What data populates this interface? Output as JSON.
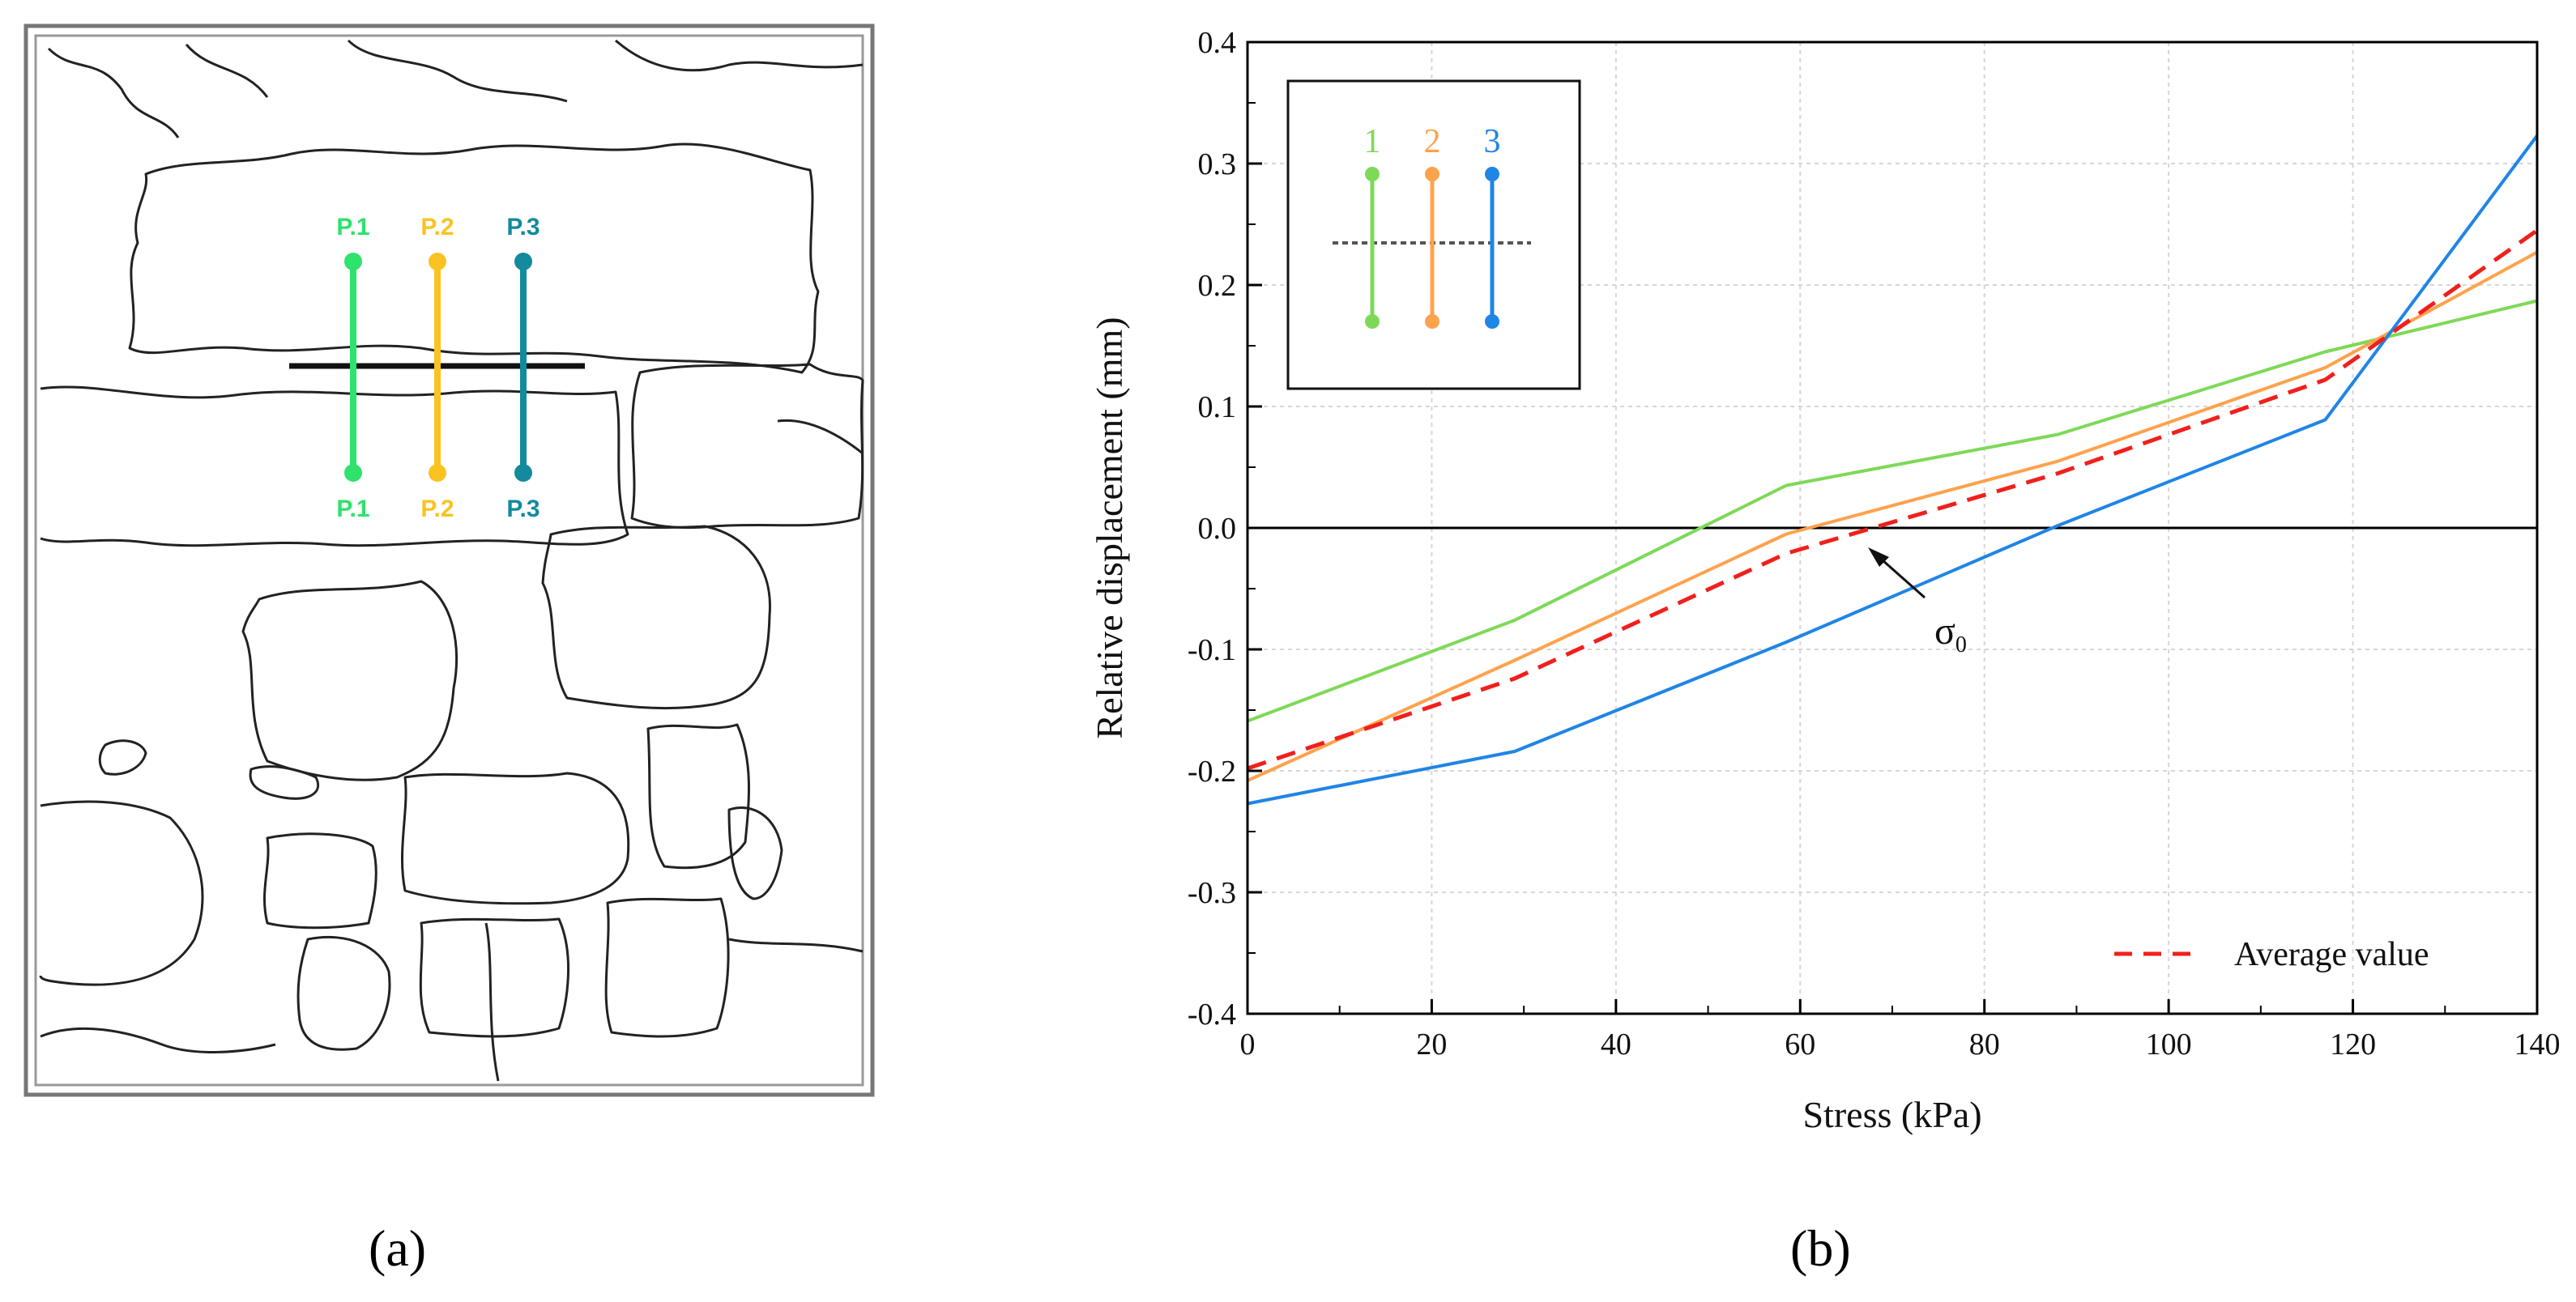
{
  "panel_a": {
    "label": "(a)",
    "point_labels_top": [
      "P.1",
      "P.2",
      "P.3"
    ],
    "point_labels_bottom": [
      "P.1",
      "P.2",
      "P.3"
    ],
    "point_colors": [
      "#2ee26b",
      "#fbc321",
      "#138a9d"
    ]
  },
  "panel_b": {
    "label": "(b)"
  },
  "chart_data": {
    "type": "line",
    "title": "",
    "xlabel": "Stress (kPa)",
    "ylabel": "Relative displacement (mm)",
    "xlim": [
      0,
      140
    ],
    "ylim": [
      -0.4,
      0.4
    ],
    "xticks": [
      0,
      20,
      40,
      60,
      80,
      100,
      120,
      140
    ],
    "yticks": [
      -0.4,
      -0.3,
      -0.2,
      -0.1,
      0.0,
      0.1,
      0.2,
      0.3,
      0.4
    ],
    "xtick_labels": [
      "0",
      "20",
      "40",
      "60",
      "80",
      "100",
      "120",
      "140"
    ],
    "ytick_labels": [
      "-0.4",
      "-0.3",
      "-0.2",
      "-0.1",
      "0.0",
      "0.1",
      "0.2",
      "0.3",
      "0.4"
    ],
    "grid": true,
    "series": [
      {
        "name": "1",
        "color": "#7ed957",
        "style": "solid",
        "x": [
          0,
          29,
          58.5,
          88,
          117,
          140
        ],
        "y": [
          -0.159,
          -0.076,
          0.035,
          0.077,
          0.145,
          0.187
        ]
      },
      {
        "name": "2",
        "color": "#ffa24c",
        "style": "solid",
        "x": [
          0,
          29,
          58.5,
          88,
          117,
          140
        ],
        "y": [
          -0.208,
          -0.109,
          -0.005,
          0.055,
          0.132,
          0.227
        ]
      },
      {
        "name": "3",
        "color": "#1f85e6",
        "style": "solid",
        "x": [
          0,
          29,
          58.5,
          88,
          117,
          140
        ],
        "y": [
          -0.227,
          -0.184,
          -0.094,
          0.002,
          0.089,
          0.323
        ]
      },
      {
        "name": "Average value",
        "color": "#f0201c",
        "style": "dashed",
        "x": [
          0,
          29,
          58.5,
          88,
          117,
          140
        ],
        "y": [
          -0.198,
          -0.124,
          -0.021,
          0.045,
          0.122,
          0.245
        ]
      }
    ],
    "legend": {
      "placement": "bottom-right",
      "entries": [
        "Average value"
      ]
    },
    "inset_legend": {
      "placement": "top-left",
      "labels": [
        "1",
        "2",
        "3"
      ]
    },
    "annotations": [
      {
        "text": "σ",
        "subscript": "0",
        "x": 68,
        "y": 0.0
      }
    ]
  }
}
